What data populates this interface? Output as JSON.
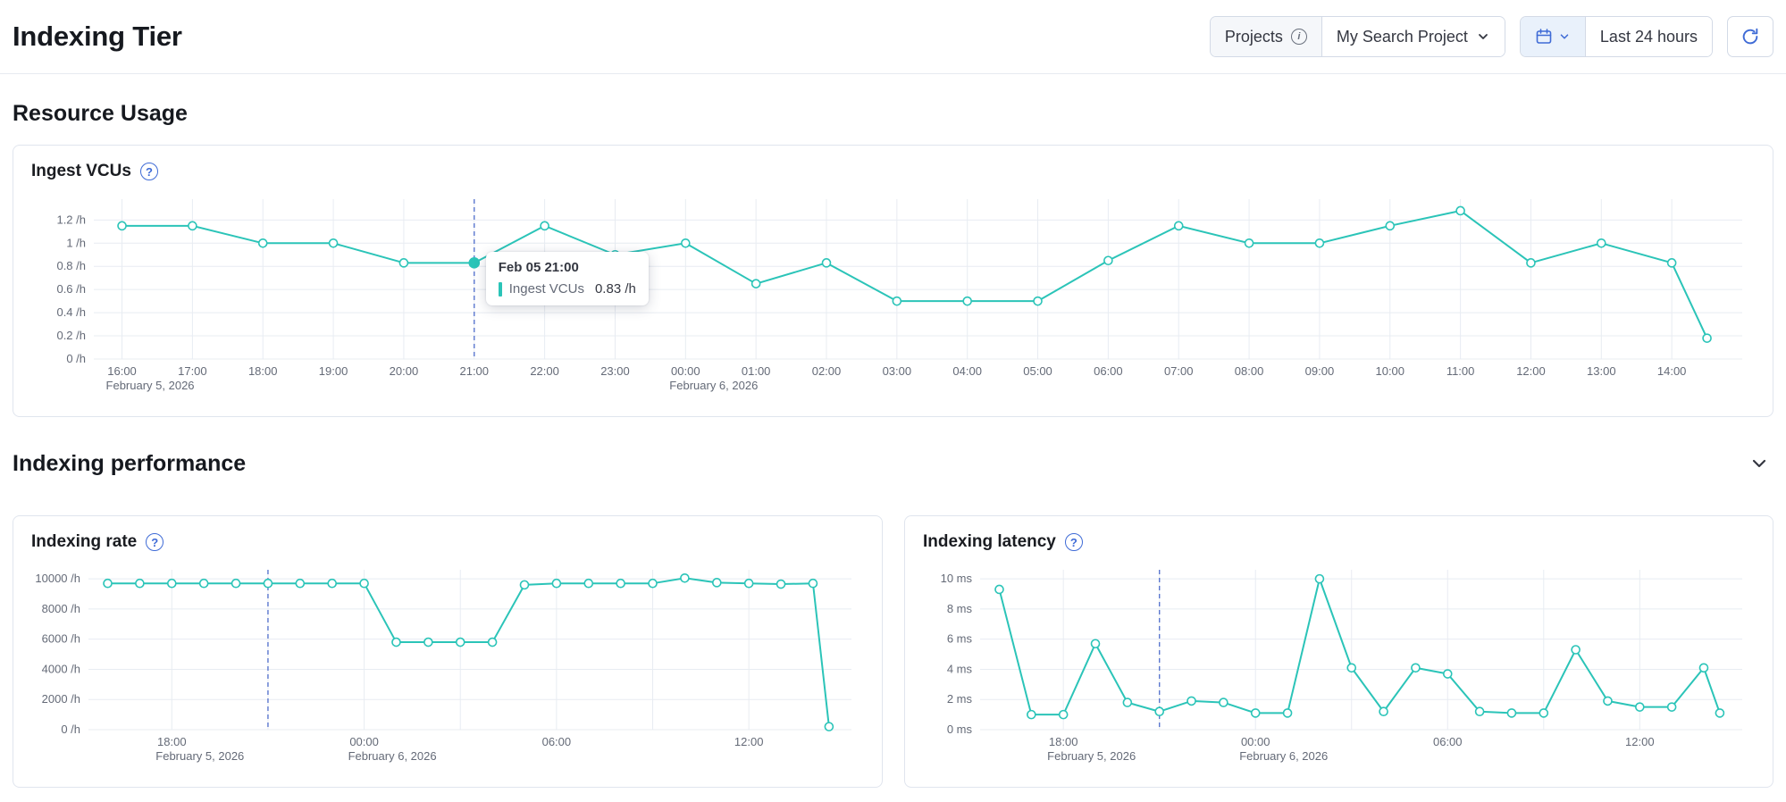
{
  "page": {
    "title": "Indexing Tier"
  },
  "header": {
    "projects_label": "Projects",
    "project_name": "My Search Project",
    "time_range_label": "Last 24 hours"
  },
  "sections": {
    "resource_usage": {
      "title": "Resource Usage"
    },
    "indexing_performance": {
      "title": "Indexing performance"
    }
  },
  "tooltip": {
    "title": "Feb 05 21:00",
    "series": "Ingest VCUs",
    "value": "0.83 /h"
  },
  "colors": {
    "accent": "#2bc4b8",
    "cursor": "#5b77cf",
    "primary": "#3f6bd6",
    "grid": "#e8ecf2",
    "axis_text": "#646a77"
  },
  "chart_data": [
    {
      "name": "ingest-vcus",
      "title": "Ingest VCUs",
      "type": "line",
      "unit": "/h",
      "xlim": [
        -0.4,
        23.0
      ],
      "ylim": [
        0,
        1.38
      ],
      "x": [
        0,
        1,
        2,
        3,
        4,
        5,
        6,
        7,
        8,
        9,
        10,
        11,
        12,
        13,
        14,
        15,
        16,
        17,
        18,
        19,
        20,
        21,
        22,
        22.5
      ],
      "values": [
        1.15,
        1.15,
        1.0,
        1.0,
        0.83,
        0.83,
        1.15,
        0.9,
        1.0,
        0.65,
        0.83,
        0.5,
        0.5,
        0.5,
        0.85,
        1.15,
        1.0,
        1.0,
        1.15,
        1.28,
        0.83,
        1.0,
        0.83,
        0.18
      ],
      "y_ticks": [
        {
          "v": 0,
          "label": "0 /h"
        },
        {
          "v": 0.2,
          "label": "0.2 /h"
        },
        {
          "v": 0.4,
          "label": "0.4 /h"
        },
        {
          "v": 0.6,
          "label": "0.6 /h"
        },
        {
          "v": 0.8,
          "label": "0.8 /h"
        },
        {
          "v": 1,
          "label": "1 /h"
        },
        {
          "v": 1.2,
          "label": "1.2 /h"
        }
      ],
      "x_ticks": [
        {
          "v": 0,
          "label": "16:00",
          "sub": "February 5, 2026"
        },
        {
          "v": 1,
          "label": "17:00"
        },
        {
          "v": 2,
          "label": "18:00"
        },
        {
          "v": 3,
          "label": "19:00"
        },
        {
          "v": 4,
          "label": "20:00"
        },
        {
          "v": 5,
          "label": "21:00"
        },
        {
          "v": 6,
          "label": "22:00"
        },
        {
          "v": 7,
          "label": "23:00"
        },
        {
          "v": 8,
          "label": "00:00",
          "sub": "February 6, 2026"
        },
        {
          "v": 9,
          "label": "01:00"
        },
        {
          "v": 10,
          "label": "02:00"
        },
        {
          "v": 11,
          "label": "03:00"
        },
        {
          "v": 12,
          "label": "04:00"
        },
        {
          "v": 13,
          "label": "05:00"
        },
        {
          "v": 14,
          "label": "06:00"
        },
        {
          "v": 15,
          "label": "07:00"
        },
        {
          "v": 16,
          "label": "08:00"
        },
        {
          "v": 17,
          "label": "09:00"
        },
        {
          "v": 18,
          "label": "10:00"
        },
        {
          "v": 19,
          "label": "11:00"
        },
        {
          "v": 20,
          "label": "12:00"
        },
        {
          "v": 21,
          "label": "13:00"
        },
        {
          "v": 22,
          "label": "14:00"
        }
      ],
      "grid_x": [
        0,
        1,
        2,
        3,
        4,
        5,
        6,
        7,
        8,
        9,
        10,
        11,
        12,
        13,
        14,
        15,
        16,
        17,
        18,
        19,
        20,
        21,
        22
      ],
      "cursor_x": 5,
      "hover_index": 5
    },
    {
      "name": "indexing-rate",
      "title": "Indexing rate",
      "type": "line",
      "unit": "/h",
      "xlim": [
        -0.6,
        23.2
      ],
      "ylim": [
        0,
        10600
      ],
      "x": [
        0,
        1,
        2,
        3,
        4,
        5,
        6,
        7,
        8,
        9,
        10,
        11,
        12,
        13,
        14,
        15,
        16,
        17,
        18,
        19,
        20,
        21,
        22,
        22.5
      ],
      "values": [
        9700,
        9700,
        9700,
        9700,
        9700,
        9700,
        9700,
        9700,
        9700,
        5800,
        5800,
        5800,
        5800,
        9600,
        9700,
        9700,
        9700,
        9700,
        10050,
        9750,
        9700,
        9650,
        9700,
        200
      ],
      "y_ticks": [
        {
          "v": 0,
          "label": "0 /h"
        },
        {
          "v": 2000,
          "label": "2000 /h"
        },
        {
          "v": 4000,
          "label": "4000 /h"
        },
        {
          "v": 6000,
          "label": "6000 /h"
        },
        {
          "v": 8000,
          "label": "8000 /h"
        },
        {
          "v": 10000,
          "label": "10000 /h"
        }
      ],
      "x_ticks": [
        {
          "v": 2,
          "label": "18:00",
          "sub": "February 5, 2026"
        },
        {
          "v": 8,
          "label": "00:00",
          "sub": "February 6, 2026"
        },
        {
          "v": 14,
          "label": "06:00"
        },
        {
          "v": 20,
          "label": "12:00"
        }
      ],
      "grid_x": [
        2,
        5,
        8,
        11,
        14,
        17,
        20
      ],
      "cursor_x": 5,
      "hover_index": null
    },
    {
      "name": "indexing-latency",
      "title": "Indexing latency",
      "type": "line",
      "unit": "ms",
      "xlim": [
        -0.6,
        23.2
      ],
      "ylim": [
        0,
        10.6
      ],
      "x": [
        0,
        1,
        2,
        3,
        4,
        5,
        6,
        7,
        8,
        9,
        10,
        11,
        12,
        13,
        14,
        15,
        16,
        17,
        18,
        19,
        20,
        21,
        22,
        22.5
      ],
      "values": [
        9.3,
        1.0,
        1.0,
        5.7,
        1.8,
        1.2,
        1.9,
        1.8,
        1.1,
        1.1,
        10.0,
        4.1,
        1.2,
        4.1,
        3.7,
        1.2,
        1.1,
        1.1,
        5.3,
        1.9,
        1.5,
        1.5,
        4.1,
        1.1
      ],
      "y_ticks": [
        {
          "v": 0,
          "label": "0 ms"
        },
        {
          "v": 2,
          "label": "2 ms"
        },
        {
          "v": 4,
          "label": "4 ms"
        },
        {
          "v": 6,
          "label": "6 ms"
        },
        {
          "v": 8,
          "label": "8 ms"
        },
        {
          "v": 10,
          "label": "10 ms"
        }
      ],
      "x_ticks": [
        {
          "v": 2,
          "label": "18:00",
          "sub": "February 5, 2026"
        },
        {
          "v": 8,
          "label": "00:00",
          "sub": "February 6, 2026"
        },
        {
          "v": 14,
          "label": "06:00"
        },
        {
          "v": 20,
          "label": "12:00"
        }
      ],
      "grid_x": [
        2,
        5,
        8,
        11,
        14,
        17,
        20
      ],
      "cursor_x": 5,
      "hover_index": null
    }
  ]
}
